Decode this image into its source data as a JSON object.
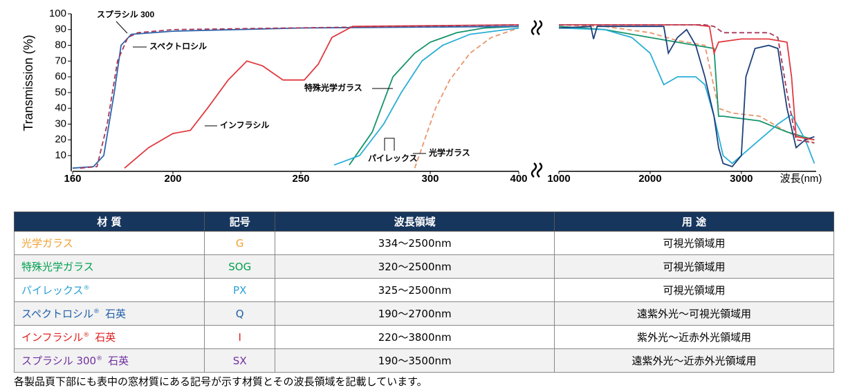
{
  "chart_data": [
    {
      "type": "line",
      "ylabel": "Transmission (%)",
      "xlim": [
        160,
        400
      ],
      "xticks": [
        160,
        200,
        250,
        300,
        400
      ],
      "ylim": [
        0,
        100
      ],
      "yticks": [
        10,
        20,
        30,
        40,
        50,
        60,
        70,
        80,
        90,
        100
      ],
      "series": [
        {
          "name": "光学ガラス",
          "color": "#e8956b",
          "dashed": true,
          "x": [
            294,
            296.8,
            306,
            322,
            345,
            369,
            400
          ],
          "values": [
            2,
            15,
            40,
            58,
            75,
            85,
            91
          ]
        },
        {
          "name": "特殊光学ガラス",
          "color": "#15946a",
          "dashed": false,
          "x": [
            268.7,
            277.6,
            285.6,
            294,
            300,
            330,
            361,
            400
          ],
          "values": [
            4,
            25,
            60,
            75,
            82,
            88,
            91,
            92
          ]
        },
        {
          "name": "パイレックス",
          "color": "#2aaed6",
          "dashed": false,
          "x": [
            262.8,
            272.7,
            282,
            288.8,
            296.8,
            314,
            345,
            400
          ],
          "values": [
            4,
            10,
            30,
            50,
            70,
            80,
            87,
            91
          ]
        },
        {
          "name": "スペクトロシル",
          "color": "#2a64ad",
          "dashed": false,
          "x": [
            160,
            168.3,
            172.4,
            176.6,
            179.3,
            183.4,
            200,
            250,
            400
          ],
          "values": [
            2,
            3,
            10,
            50,
            80,
            87,
            89,
            91,
            92
          ]
        },
        {
          "name": "インフラシル",
          "color": "#e0393e",
          "dashed": false,
          "x": [
            180.7,
            190.3,
            200,
            206.8,
            213.5,
            221.6,
            228.9,
            235,
            243,
            251.3,
            256.7,
            262,
            270,
            400
          ],
          "values": [
            2,
            15,
            24,
            26,
            40,
            58,
            70,
            67,
            58,
            58,
            68,
            85,
            92,
            93
          ]
        },
        {
          "name": "スプラシル 300",
          "color": "#a8385a",
          "dashed": true,
          "x": [
            163,
            169.7,
            173.8,
            177.9,
            182,
            186,
            200,
            400
          ],
          "values": [
            2,
            3,
            30,
            70,
            85,
            88,
            90,
            93
          ]
        }
      ]
    },
    {
      "type": "line",
      "xlabel": "波長(nm)",
      "xlim": [
        1000,
        3820
      ],
      "xticks": [
        1000,
        2000,
        3000
      ],
      "ylim": [
        0,
        100
      ],
      "series": [
        {
          "color": "#e8956b",
          "dashed": true,
          "x": [
            1000,
            1500,
            2000,
            2300,
            2600,
            2750,
            2900,
            3200,
            3500,
            3800
          ],
          "values": [
            93,
            92,
            88,
            83,
            80,
            40,
            37,
            35,
            25,
            18
          ]
        },
        {
          "color": "#15946a",
          "dashed": false,
          "x": [
            1000,
            1500,
            2000,
            2500,
            2700,
            2750,
            2800,
            3200,
            3500,
            3800
          ],
          "values": [
            92,
            90,
            85,
            80,
            78,
            35,
            35,
            32,
            25,
            20
          ]
        },
        {
          "color": "#2aaed6",
          "dashed": false,
          "x": [
            1000,
            1500,
            1800,
            2000,
            2150,
            2300,
            2500,
            2600,
            2700,
            2800,
            2900,
            3100,
            3400,
            3550,
            3700,
            3800
          ],
          "values": [
            91,
            90,
            85,
            75,
            55,
            60,
            60,
            55,
            35,
            10,
            5,
            15,
            30,
            36,
            20,
            5
          ]
        },
        {
          "color": "#1d3f78",
          "dashed": false,
          "x": [
            1000,
            1350,
            1380,
            1420,
            2000,
            2150,
            2200,
            2300,
            2400,
            2500,
            2600,
            2700,
            2750,
            2800,
            2900,
            3000,
            3050,
            3150,
            3300,
            3400,
            3500,
            3600,
            3700,
            3800
          ],
          "values": [
            91,
            92,
            84,
            92,
            92,
            92,
            75,
            85,
            90,
            80,
            60,
            35,
            15,
            5,
            3,
            10,
            60,
            78,
            80,
            78,
            40,
            15,
            20,
            22
          ]
        },
        {
          "color": "#e0393e",
          "dashed": false,
          "x": [
            1000,
            2000,
            2500,
            2650,
            2700,
            2750,
            3000,
            3300,
            3500,
            3550,
            3600,
            3800
          ],
          "values": [
            93,
            93,
            93,
            92,
            75,
            82,
            84,
            84,
            82,
            60,
            22,
            20
          ]
        },
        {
          "color": "#a8385a",
          "dashed": true,
          "x": [
            1000,
            2600,
            2700,
            2750,
            2800,
            3000,
            3300,
            3400,
            3500,
            3600,
            3800
          ],
          "values": [
            93,
            93,
            92,
            90,
            88,
            88,
            88,
            85,
            50,
            20,
            18
          ]
        }
      ]
    }
  ],
  "table": {
    "header": [
      "材 質",
      "記号",
      "波長領域",
      "用 途"
    ],
    "rows": [
      {
        "material": "光学ガラス",
        "code": "G",
        "range": "334～2500nm",
        "use": "可視光領域用",
        "color": "#f0a030"
      },
      {
        "material": "特殊光学ガラス",
        "code": "SOG",
        "range": "320～2500nm",
        "use": "可視光領域用",
        "color": "#00a050"
      },
      {
        "material": "パイレックス",
        "mark": "®",
        "code": "PX",
        "range": "325～2500nm",
        "use": "可視光領域用",
        "color": "#29a0d8"
      },
      {
        "material": "スペクトロシル",
        "mark": "®",
        "suffix": "石英",
        "code": "Q",
        "range": "190～2700nm",
        "use": "遠紫外光～可視光領域用",
        "color": "#1f5fa8"
      },
      {
        "material": "インフラシル",
        "mark": "®",
        "suffix": "石英",
        "code": "I",
        "range": "220～3800nm",
        "use": "紫外光～近赤外光領域用",
        "color": "#e02020"
      },
      {
        "material": "スプラシル 300",
        "mark": "®",
        "suffix": "石英",
        "code": "SX",
        "range": "190～3500nm",
        "use": "遠紫外光～近赤外光領域用",
        "color": "#7030a0"
      }
    ]
  },
  "footnote": "各製品頁下部にも表中の窓材質にある記号が示す材質とその波長領域を記載しています。"
}
